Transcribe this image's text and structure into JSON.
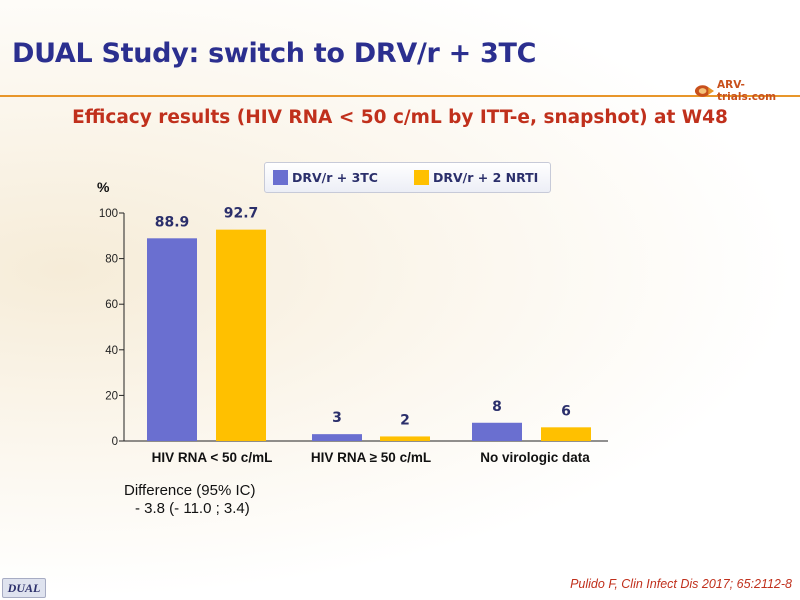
{
  "header": {
    "title": "DUAL Study: switch to DRV/r + 3TC",
    "logo_text": "ARV-trials.com"
  },
  "subtitle": "Efficacy results (HIV RNA < 50 c/mL by ITT-e, snapshot) at W48",
  "legend": {
    "items": [
      {
        "label": "DRV/r + 3TC",
        "color": "#6a6fd0"
      },
      {
        "label": "DRV/r + 2 NRTI",
        "color": "#ffc000"
      }
    ]
  },
  "chart_data": {
    "type": "bar",
    "ylabel": "%",
    "ylim": [
      0,
      100
    ],
    "yticks": [
      0,
      20,
      40,
      60,
      80,
      100
    ],
    "categories": [
      "HIV RNA < 50 c/mL",
      "HIV RNA ≥ 50 c/mL",
      "No virologic data"
    ],
    "series": [
      {
        "name": "DRV/r + 3TC",
        "color": "#6a6fd0",
        "values": [
          88.9,
          3,
          8
        ],
        "labels": [
          "88.9",
          "3",
          "8"
        ]
      },
      {
        "name": "DRV/r + 2 NRTI",
        "color": "#ffc000",
        "values": [
          92.7,
          2,
          6
        ],
        "labels": [
          "92.7",
          "2",
          "6"
        ]
      }
    ],
    "grid": false
  },
  "difference": {
    "line1": "Difference (95% IC)",
    "line2": "- 3.8 (- 11.0 ; 3.4)"
  },
  "footer": {
    "badge": "DUAL",
    "reference": "Pulido F, Clin Infect Dis 2017; 65:2112-8"
  }
}
